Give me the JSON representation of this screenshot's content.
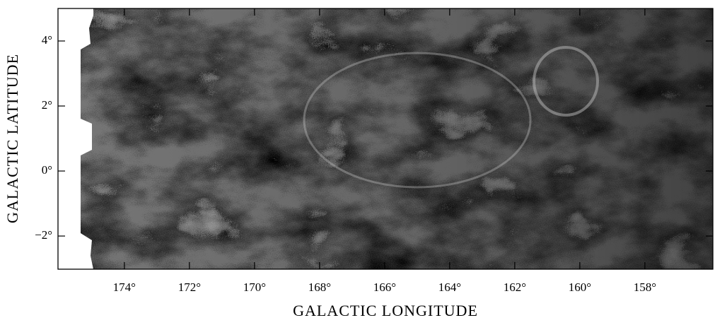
{
  "chart_data": {
    "type": "image",
    "xlabel": "GALACTIC LONGITUDE",
    "ylabel": "GALACTIC LATITUDE",
    "xlim": [
      176.04,
      155.91
    ],
    "ylim": [
      -3.02,
      5.0
    ],
    "xticks": [
      {
        "value": 174,
        "label": "174°"
      },
      {
        "value": 172,
        "label": "172°"
      },
      {
        "value": 170,
        "label": "170°"
      },
      {
        "value": 168,
        "label": "168°"
      },
      {
        "value": 166,
        "label": "166°"
      },
      {
        "value": 164,
        "label": "164°"
      },
      {
        "value": 162,
        "label": "162°"
      },
      {
        "value": 160,
        "label": "160°"
      },
      {
        "value": 158,
        "label": "158°"
      }
    ],
    "yticks": [
      {
        "value": 4,
        "label": "4°"
      },
      {
        "value": 2,
        "label": "2°"
      },
      {
        "value": 0,
        "label": "0°"
      },
      {
        "value": -2,
        "label": "−2°"
      }
    ]
  }
}
